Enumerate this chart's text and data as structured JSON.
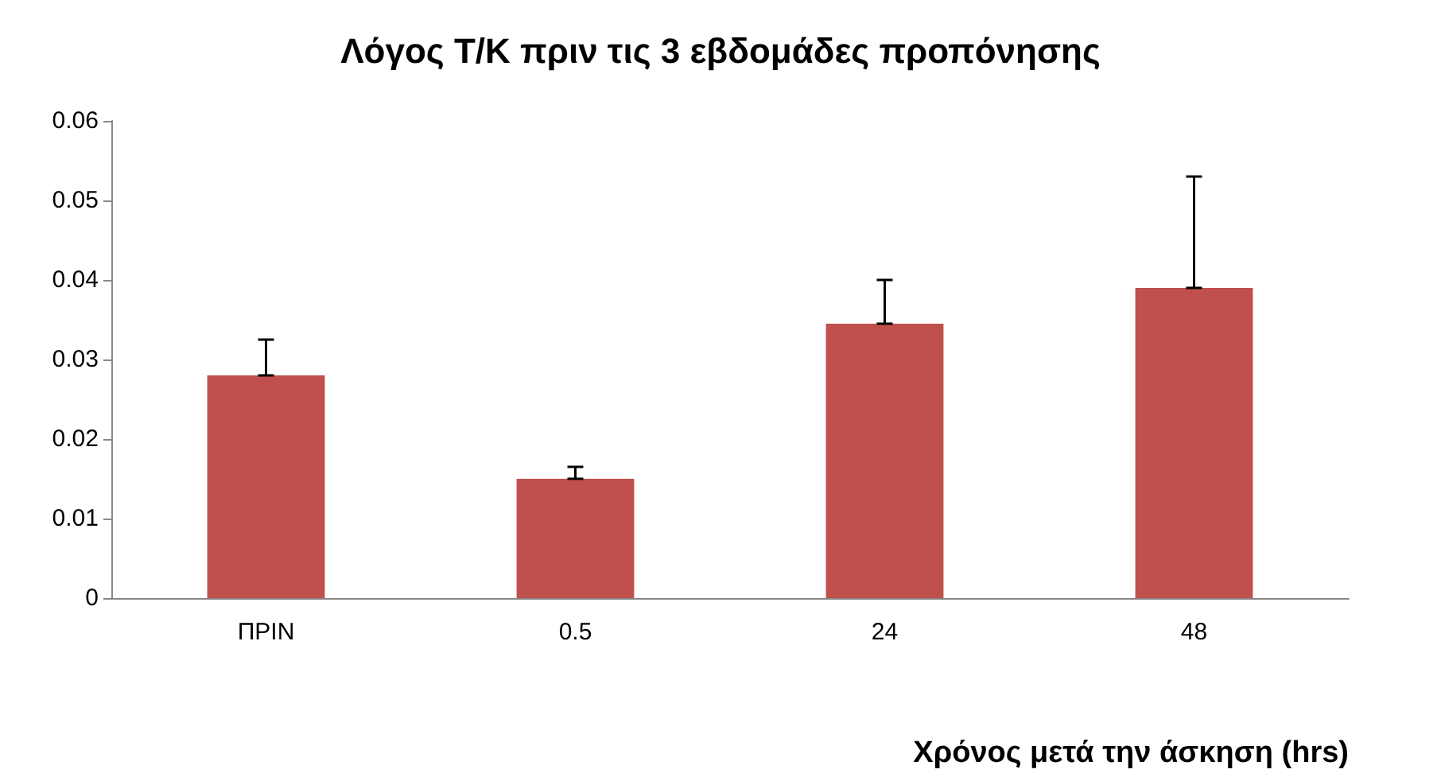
{
  "chart_data": {
    "type": "bar",
    "title": "Λόγος Τ/Κ πριν τις 3 εβδομάδες προπόνησης",
    "xlabel": "Χρόνος μετά την άσκηση (hrs)",
    "categories": [
      "ΠΡΙΝ",
      "0.5",
      "24",
      "48"
    ],
    "values": [
      0.028,
      0.015,
      0.0345,
      0.039
    ],
    "errors": [
      [
        0.028,
        0.0325
      ],
      [
        0.015,
        0.0165
      ],
      [
        0.0345,
        0.04
      ],
      [
        0.039,
        0.053
      ]
    ],
    "color": "#c0504d",
    "ylim": [
      0,
      0.06
    ],
    "yticks": [
      0,
      0.01,
      0.02,
      0.03,
      0.04,
      0.05,
      0.06
    ],
    "grid": false
  }
}
